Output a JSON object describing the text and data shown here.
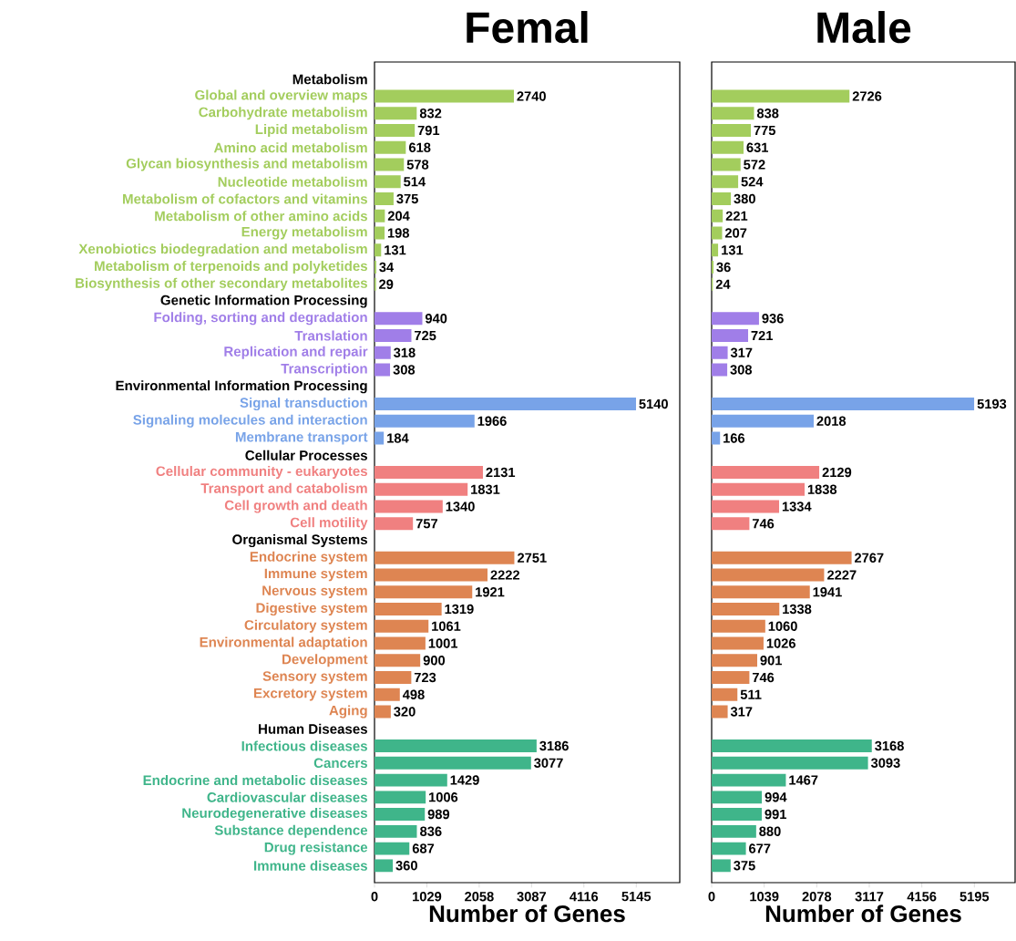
{
  "chart_data": [
    {
      "type": "bar",
      "orientation": "horizontal",
      "title": "Femal",
      "xlabel": "Number of Genes",
      "categories": [
        "Metabolism",
        "Global and overview maps",
        "Carbohydrate metabolism",
        "Lipid metabolism",
        "Amino acid metabolism",
        "Glycan biosynthesis and metabolism",
        "Nucleotide metabolism",
        "Metabolism of cofactors and vitamins",
        "Metabolism of other amino acids",
        "Energy metabolism",
        "Xenobiotics biodegradation and metabolism",
        "Metabolism of terpenoids and polyketides",
        "Biosynthesis of other secondary metabolites",
        "Genetic Information Processing",
        "Folding, sorting and degradation",
        "Translation",
        "Replication and repair",
        "Transcription",
        "Environmental Information Processing",
        "Signal transduction",
        "Signaling molecules and interaction",
        "Membrane transport",
        "Cellular Processes",
        "Cellular community - eukaryotes",
        "Transport and catabolism",
        "Cell growth and death",
        "Cell motility",
        "Organismal Systems",
        "Endocrine system",
        "Immune system",
        "Nervous system",
        "Digestive system",
        "Circulatory system",
        "Environmental adaptation",
        "Development",
        "Sensory system",
        "Excretory system",
        "Aging",
        "Human Diseases",
        "Infectious diseases",
        "Cancers",
        "Endocrine and metabolic diseases",
        "Cardiovascular diseases",
        "Neurodegenerative diseases",
        "Substance dependence",
        "Drug resistance",
        "Immune diseases"
      ],
      "values": [
        null,
        2740,
        832,
        791,
        618,
        578,
        514,
        375,
        204,
        198,
        131,
        34,
        29,
        null,
        940,
        725,
        318,
        308,
        null,
        5140,
        1966,
        184,
        null,
        2131,
        1831,
        1340,
        757,
        null,
        2751,
        2222,
        1921,
        1319,
        1061,
        1001,
        900,
        723,
        498,
        320,
        null,
        3186,
        3077,
        1429,
        1006,
        989,
        836,
        687,
        360
      ],
      "colors": [
        null,
        "#a3cd5d",
        "#a3cd5d",
        "#a3cd5d",
        "#a3cd5d",
        "#a3cd5d",
        "#a3cd5d",
        "#a3cd5d",
        "#a3cd5d",
        "#a3cd5d",
        "#a3cd5d",
        "#a3cd5d",
        "#a3cd5d",
        null,
        "#a07ee8",
        "#a07ee8",
        "#a07ee8",
        "#a07ee8",
        null,
        "#78a3e8",
        "#78a3e8",
        "#78a3e8",
        null,
        "#f08080",
        "#f08080",
        "#f08080",
        "#f08080",
        null,
        "#de8552",
        "#de8552",
        "#de8552",
        "#de8552",
        "#de8552",
        "#de8552",
        "#de8552",
        "#de8552",
        "#de8552",
        "#de8552",
        null,
        "#3fb58a",
        "#3fb58a",
        "#3fb58a",
        "#3fb58a",
        "#3fb58a",
        "#3fb58a",
        "#3fb58a",
        "#3fb58a"
      ],
      "xlim": [
        0,
        6000
      ],
      "xticks": [
        0,
        1029,
        2058,
        3087,
        4116,
        5145
      ],
      "data_labels": true
    },
    {
      "type": "bar",
      "orientation": "horizontal",
      "title": "Male",
      "xlabel": "Number of Genes",
      "categories": [
        null,
        null,
        null,
        null,
        null,
        null,
        null,
        null,
        null,
        null,
        null,
        null,
        null,
        null,
        null,
        null,
        null,
        null,
        null,
        null,
        null,
        null,
        null,
        null,
        null,
        null,
        null,
        null,
        null,
        null,
        null,
        null,
        null,
        null,
        null,
        null,
        null,
        null,
        null,
        null,
        null,
        null,
        null,
        null,
        null,
        null,
        null
      ],
      "values": [
        null,
        2726,
        838,
        775,
        631,
        572,
        524,
        380,
        221,
        207,
        131,
        36,
        24,
        null,
        936,
        721,
        317,
        308,
        null,
        5193,
        2018,
        166,
        null,
        2129,
        1838,
        1334,
        746,
        null,
        2767,
        2227,
        1941,
        1338,
        1060,
        1026,
        901,
        746,
        511,
        317,
        null,
        3168,
        3093,
        1467,
        994,
        991,
        880,
        677,
        375
      ],
      "colors": [
        null,
        "#a3cd5d",
        "#a3cd5d",
        "#a3cd5d",
        "#a3cd5d",
        "#a3cd5d",
        "#a3cd5d",
        "#a3cd5d",
        "#a3cd5d",
        "#a3cd5d",
        "#a3cd5d",
        "#a3cd5d",
        "#a3cd5d",
        null,
        "#a07ee8",
        "#a07ee8",
        "#a07ee8",
        "#a07ee8",
        null,
        "#78a3e8",
        "#78a3e8",
        "#78a3e8",
        null,
        "#f08080",
        "#f08080",
        "#f08080",
        "#f08080",
        null,
        "#de8552",
        "#de8552",
        "#de8552",
        "#de8552",
        "#de8552",
        "#de8552",
        "#de8552",
        "#de8552",
        "#de8552",
        "#de8552",
        null,
        "#3fb58a",
        "#3fb58a",
        "#3fb58a",
        "#3fb58a",
        "#3fb58a",
        "#3fb58a",
        "#3fb58a",
        "#3fb58a"
      ],
      "xlim": [
        0,
        6000
      ],
      "xticks": [
        0,
        1039,
        2078,
        3117,
        4156,
        5195
      ],
      "data_labels": true,
      "tick_labels": "x"
    }
  ]
}
